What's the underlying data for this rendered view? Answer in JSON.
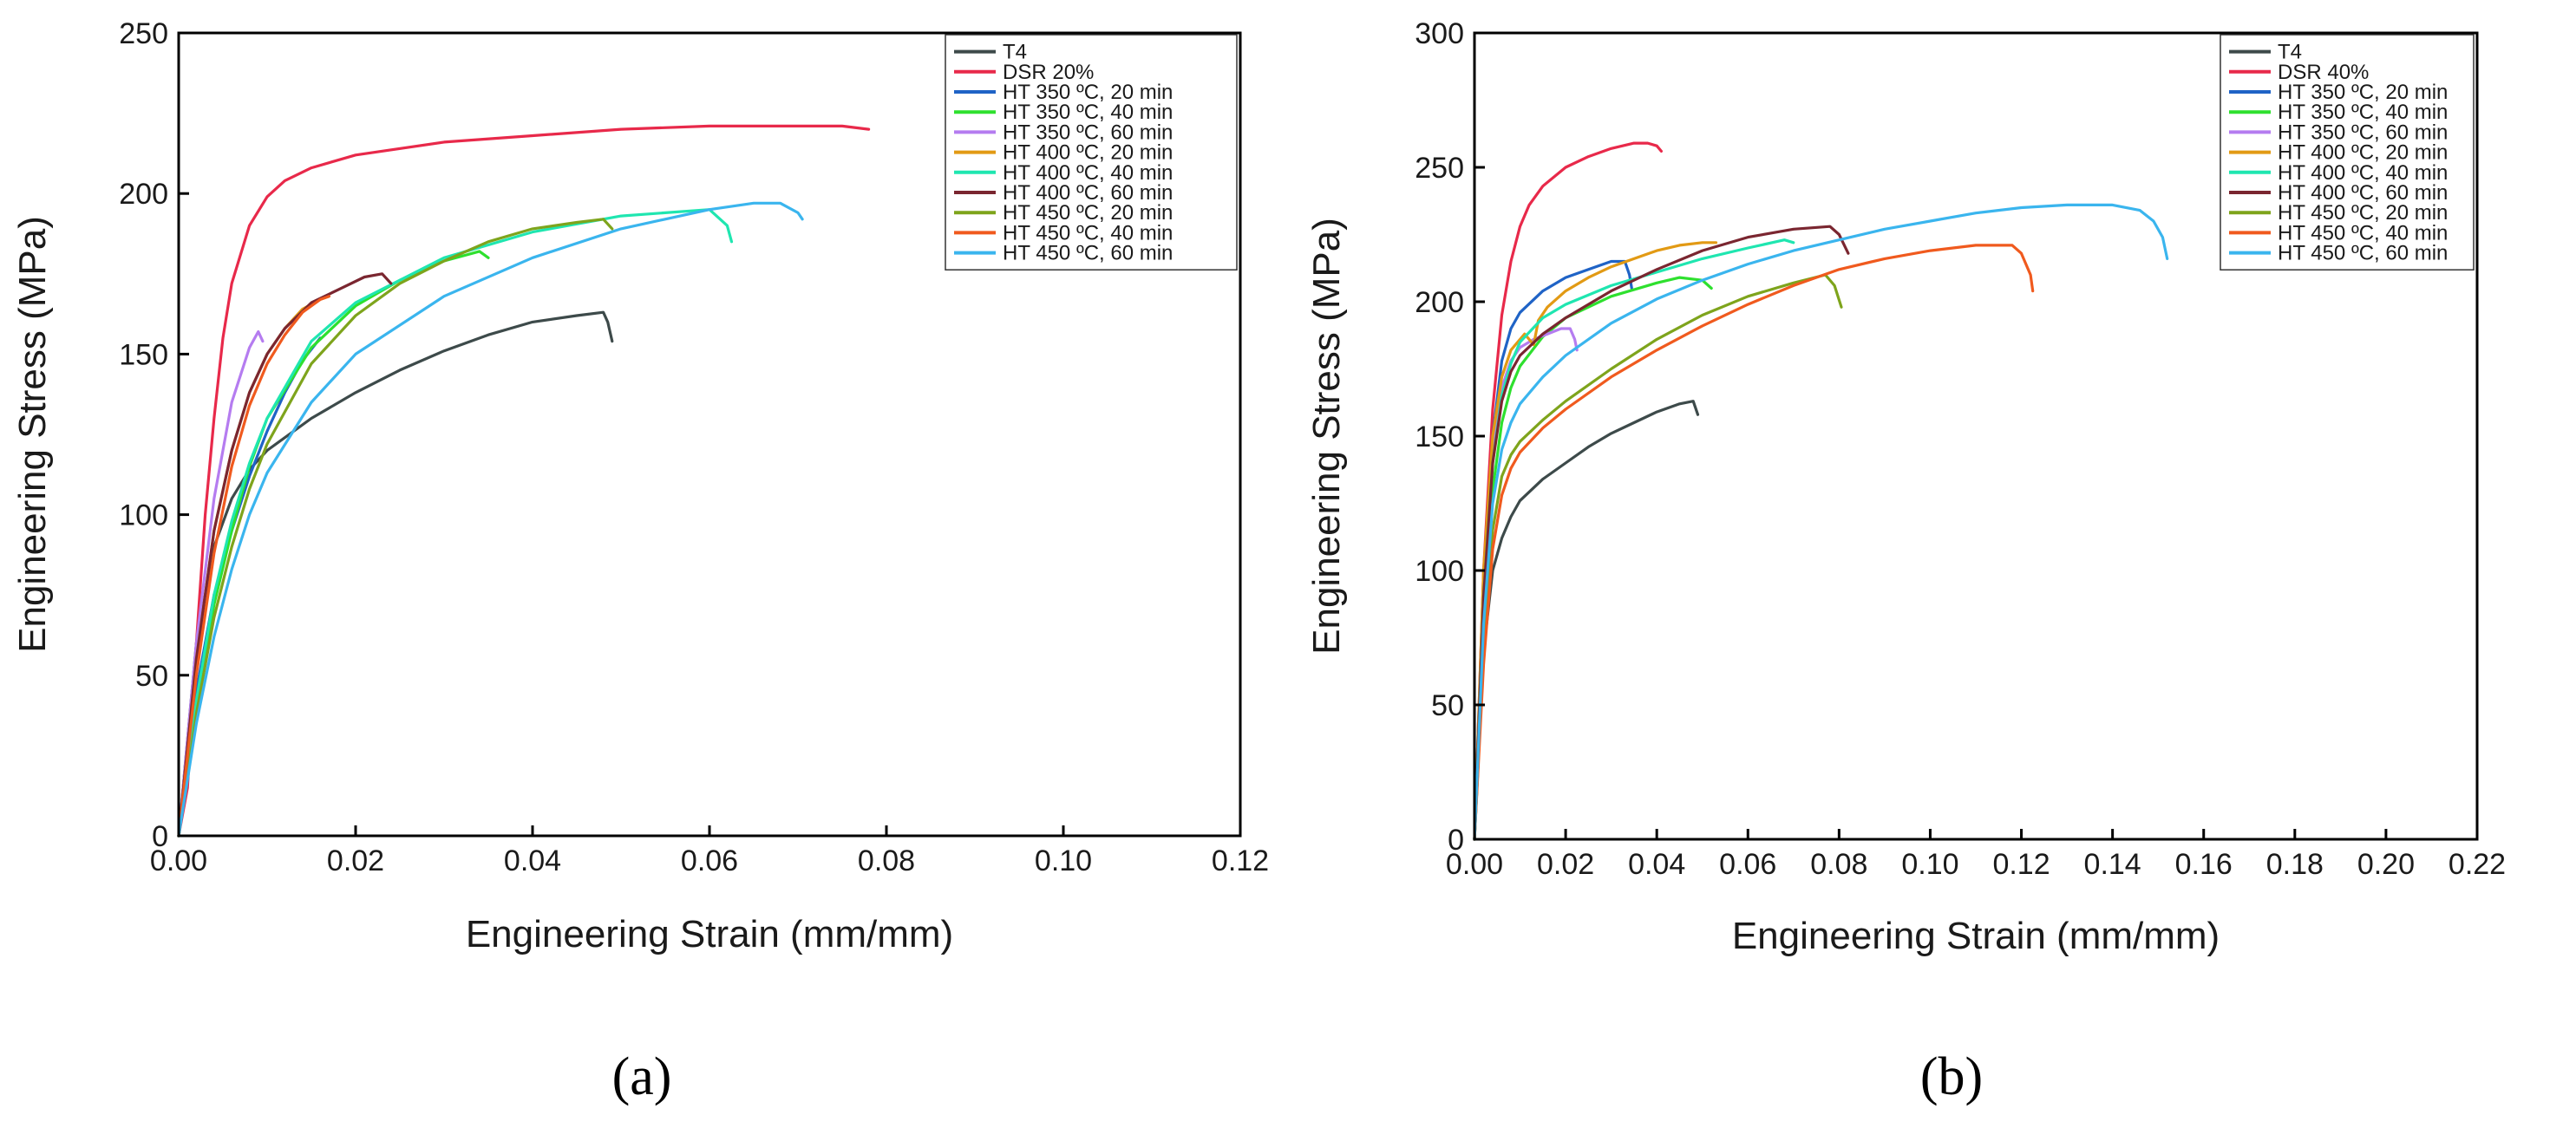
{
  "figure": {
    "panels": [
      {
        "label": "(a)"
      },
      {
        "label": "(b)"
      }
    ]
  },
  "chart_data": [
    {
      "type": "line",
      "panel": "(a)",
      "xlabel": "Engineering Strain (mm/mm)",
      "ylabel": "Engineering Stress (MPa)",
      "xlim": [
        0,
        0.12
      ],
      "ylim": [
        0,
        250
      ],
      "xticks": [
        0.0,
        0.02,
        0.04,
        0.06,
        0.08,
        0.1,
        0.12
      ],
      "xtick_labels": [
        "0.00",
        "0.02",
        "0.04",
        "0.06",
        "0.08",
        "0.10",
        "0.12"
      ],
      "yticks": [
        0,
        50,
        100,
        150,
        200,
        250
      ],
      "ytick_labels": [
        "0",
        "50",
        "100",
        "150",
        "200",
        "250"
      ],
      "grid": false,
      "legend_position": "top-right",
      "series": [
        {
          "name": "T4",
          "color": "#3d4a4a",
          "x": [
            0,
            0.002,
            0.004,
            0.006,
            0.008,
            0.01,
            0.015,
            0.02,
            0.025,
            0.03,
            0.035,
            0.04,
            0.045,
            0.048,
            0.0485,
            0.049
          ],
          "y": [
            0,
            60,
            90,
            105,
            114,
            120,
            130,
            138,
            145,
            151,
            156,
            160,
            162,
            163,
            160,
            154
          ]
        },
        {
          "name": "DSR 20%",
          "color": "#e8294a",
          "x": [
            0,
            0.001,
            0.002,
            0.003,
            0.004,
            0.005,
            0.006,
            0.008,
            0.01,
            0.012,
            0.015,
            0.02,
            0.03,
            0.04,
            0.05,
            0.06,
            0.07,
            0.075,
            0.078
          ],
          "y": [
            0,
            15,
            60,
            100,
            130,
            155,
            172,
            190,
            199,
            204,
            208,
            212,
            216,
            218,
            220,
            221,
            221,
            221,
            220
          ]
        },
        {
          "name": "HT 350 ºC, 20 min",
          "color": "#1f63c6",
          "x": [
            0,
            0.002,
            0.004,
            0.006,
            0.008,
            0.01,
            0.012,
            0.014,
            0.016
          ],
          "y": [
            0,
            45,
            75,
            95,
            112,
            126,
            138,
            148,
            155
          ]
        },
        {
          "name": "HT 350 ºC, 40 min",
          "color": "#2ee02e",
          "x": [
            0,
            0.002,
            0.004,
            0.006,
            0.008,
            0.01,
            0.015,
            0.02,
            0.025,
            0.03,
            0.034,
            0.035
          ],
          "y": [
            0,
            40,
            72,
            95,
            115,
            130,
            152,
            165,
            173,
            179,
            182,
            180
          ]
        },
        {
          "name": "HT 350 ºC, 60 min",
          "color": "#b57cf0",
          "x": [
            0,
            0.002,
            0.004,
            0.006,
            0.008,
            0.009,
            0.0095
          ],
          "y": [
            0,
            60,
            105,
            135,
            152,
            157,
            154
          ]
        },
        {
          "name": "HT 400 ºC, 20 min",
          "color": "#e29a14",
          "x": [
            0,
            0.002,
            0.004,
            0.006,
            0.008,
            0.01,
            0.012,
            0.014,
            0.016,
            0.017
          ],
          "y": [
            0,
            55,
            95,
            120,
            138,
            150,
            158,
            164,
            167,
            168
          ]
        },
        {
          "name": "HT 400 ºC, 40 min",
          "color": "#1fe6b0",
          "x": [
            0,
            0.002,
            0.004,
            0.006,
            0.008,
            0.01,
            0.015,
            0.02,
            0.03,
            0.04,
            0.05,
            0.06,
            0.062,
            0.0625
          ],
          "y": [
            0,
            42,
            75,
            98,
            116,
            130,
            154,
            166,
            180,
            188,
            193,
            195,
            190,
            185
          ]
        },
        {
          "name": "HT 400 ºC, 60 min",
          "color": "#7a2630",
          "x": [
            0,
            0.002,
            0.004,
            0.006,
            0.008,
            0.01,
            0.012,
            0.015,
            0.018,
            0.021,
            0.023,
            0.024
          ],
          "y": [
            0,
            55,
            95,
            120,
            138,
            150,
            158,
            166,
            170,
            174,
            175,
            172
          ]
        },
        {
          "name": "HT 450 ºC, 20 min",
          "color": "#7ea41c",
          "x": [
            0,
            0.002,
            0.004,
            0.006,
            0.008,
            0.01,
            0.015,
            0.02,
            0.025,
            0.03,
            0.035,
            0.04,
            0.045,
            0.048,
            0.049
          ],
          "y": [
            0,
            38,
            68,
            90,
            108,
            122,
            147,
            162,
            172,
            179,
            185,
            189,
            191,
            192,
            189
          ]
        },
        {
          "name": "HT 450 ºC, 40 min",
          "color": "#f05a1e",
          "x": [
            0,
            0.002,
            0.004,
            0.006,
            0.008,
            0.01,
            0.012,
            0.014,
            0.016,
            0.017
          ],
          "y": [
            0,
            50,
            88,
            115,
            134,
            147,
            156,
            163,
            167,
            168
          ]
        },
        {
          "name": "HT 450 ºC, 60 min",
          "color": "#3ab5ee",
          "x": [
            0,
            0.002,
            0.004,
            0.006,
            0.008,
            0.01,
            0.015,
            0.02,
            0.03,
            0.04,
            0.05,
            0.06,
            0.065,
            0.068,
            0.07,
            0.0705
          ],
          "y": [
            0,
            35,
            62,
            83,
            100,
            113,
            135,
            150,
            168,
            180,
            189,
            195,
            197,
            197,
            194,
            192
          ]
        }
      ]
    },
    {
      "type": "line",
      "panel": "(b)",
      "xlabel": "Engineering Strain (mm/mm)",
      "ylabel": "Engineering Stress (MPa)",
      "xlim": [
        0,
        0.22
      ],
      "ylim": [
        0,
        300
      ],
      "xticks": [
        0.0,
        0.02,
        0.04,
        0.06,
        0.08,
        0.1,
        0.12,
        0.14,
        0.16,
        0.18,
        0.2,
        0.22
      ],
      "xtick_labels": [
        "0.00",
        "0.02",
        "0.04",
        "0.06",
        "0.08",
        "0.10",
        "0.12",
        "0.14",
        "0.16",
        "0.18",
        "0.20",
        "0.22"
      ],
      "yticks": [
        0,
        50,
        100,
        150,
        200,
        250,
        300
      ],
      "ytick_labels": [
        "0",
        "50",
        "100",
        "150",
        "200",
        "250",
        "300"
      ],
      "grid": false,
      "legend_position": "top-right",
      "series": [
        {
          "name": "T4",
          "color": "#3d4a4a",
          "x": [
            0,
            0.002,
            0.004,
            0.006,
            0.008,
            0.01,
            0.015,
            0.02,
            0.025,
            0.03,
            0.035,
            0.04,
            0.045,
            0.048,
            0.049
          ],
          "y": [
            0,
            70,
            100,
            112,
            120,
            126,
            134,
            140,
            146,
            151,
            155,
            159,
            162,
            163,
            158
          ]
        },
        {
          "name": "DSR 40%",
          "color": "#e8294a",
          "x": [
            0,
            0.002,
            0.004,
            0.006,
            0.008,
            0.01,
            0.012,
            0.015,
            0.02,
            0.025,
            0.03,
            0.035,
            0.038,
            0.04,
            0.041
          ],
          "y": [
            0,
            100,
            160,
            195,
            215,
            228,
            236,
            243,
            250,
            254,
            257,
            259,
            259,
            258,
            256
          ]
        },
        {
          "name": "HT 350 ºC, 20 min",
          "color": "#1f63c6",
          "x": [
            0,
            0.002,
            0.004,
            0.006,
            0.008,
            0.01,
            0.015,
            0.02,
            0.025,
            0.03,
            0.033,
            0.034,
            0.0345
          ],
          "y": [
            0,
            95,
            150,
            178,
            190,
            196,
            204,
            209,
            212,
            215,
            215,
            210,
            205
          ]
        },
        {
          "name": "HT 350 ºC, 40 min",
          "color": "#2ee02e",
          "x": [
            0,
            0.002,
            0.004,
            0.006,
            0.008,
            0.01,
            0.015,
            0.02,
            0.03,
            0.04,
            0.045,
            0.05,
            0.052
          ],
          "y": [
            0,
            85,
            130,
            155,
            168,
            176,
            187,
            194,
            202,
            207,
            209,
            208,
            205
          ]
        },
        {
          "name": "HT 350 ºC, 60 min",
          "color": "#b57cf0",
          "x": [
            0,
            0.002,
            0.004,
            0.006,
            0.008,
            0.01,
            0.013,
            0.016,
            0.019,
            0.021,
            0.022,
            0.0225
          ],
          "y": [
            0,
            95,
            145,
            168,
            178,
            183,
            186,
            188,
            190,
            190,
            186,
            182
          ]
        },
        {
          "name": "HT 400 ºC, 20 min",
          "color": "#e29a14",
          "x": [
            0,
            0.002,
            0.004,
            0.006,
            0.008,
            0.01,
            0.011,
            0.012,
            0.013,
            0.014,
            0.016,
            0.02,
            0.025,
            0.03,
            0.035,
            0.04,
            0.045,
            0.05,
            0.053
          ],
          "y": [
            0,
            100,
            150,
            172,
            182,
            186,
            188,
            186,
            184,
            193,
            198,
            204,
            209,
            213,
            216,
            219,
            221,
            222,
            222
          ]
        },
        {
          "name": "HT 400 ºC, 40 min",
          "color": "#1fe6b0",
          "x": [
            0,
            0.002,
            0.004,
            0.006,
            0.008,
            0.01,
            0.015,
            0.02,
            0.03,
            0.04,
            0.05,
            0.06,
            0.068,
            0.07
          ],
          "y": [
            0,
            90,
            140,
            165,
            177,
            185,
            194,
            199,
            206,
            211,
            216,
            220,
            223,
            222
          ]
        },
        {
          "name": "HT 400 ºC, 60 min",
          "color": "#7a2630",
          "x": [
            0,
            0.002,
            0.004,
            0.006,
            0.008,
            0.01,
            0.015,
            0.02,
            0.03,
            0.04,
            0.05,
            0.06,
            0.07,
            0.078,
            0.08,
            0.082
          ],
          "y": [
            0,
            90,
            140,
            163,
            174,
            180,
            188,
            194,
            204,
            212,
            219,
            224,
            227,
            228,
            225,
            218
          ]
        },
        {
          "name": "HT 450 ºC, 20 min",
          "color": "#7ea41c",
          "x": [
            0,
            0.002,
            0.004,
            0.006,
            0.008,
            0.01,
            0.015,
            0.02,
            0.03,
            0.04,
            0.05,
            0.06,
            0.07,
            0.077,
            0.079,
            0.0805
          ],
          "y": [
            0,
            70,
            115,
            135,
            143,
            148,
            156,
            163,
            175,
            186,
            195,
            202,
            207,
            210,
            206,
            198
          ]
        },
        {
          "name": "HT 450 ºC, 40 min",
          "color": "#f05a1e",
          "x": [
            0,
            0.002,
            0.004,
            0.006,
            0.008,
            0.01,
            0.015,
            0.02,
            0.03,
            0.04,
            0.05,
            0.06,
            0.07,
            0.08,
            0.09,
            0.1,
            0.11,
            0.118,
            0.12,
            0.122,
            0.1225
          ],
          "y": [
            0,
            65,
            108,
            128,
            138,
            144,
            153,
            160,
            172,
            182,
            191,
            199,
            206,
            212,
            216,
            219,
            221,
            221,
            218,
            210,
            204
          ]
        },
        {
          "name": "HT 450 ºC, 60 min",
          "color": "#3ab5ee",
          "x": [
            0,
            0.002,
            0.004,
            0.006,
            0.008,
            0.01,
            0.015,
            0.02,
            0.03,
            0.04,
            0.05,
            0.06,
            0.07,
            0.08,
            0.09,
            0.1,
            0.11,
            0.12,
            0.13,
            0.14,
            0.146,
            0.149,
            0.151,
            0.152
          ],
          "y": [
            0,
            80,
            125,
            145,
            155,
            162,
            172,
            180,
            192,
            201,
            208,
            214,
            219,
            223,
            227,
            230,
            233,
            235,
            236,
            236,
            234,
            230,
            224,
            216
          ]
        }
      ]
    }
  ]
}
